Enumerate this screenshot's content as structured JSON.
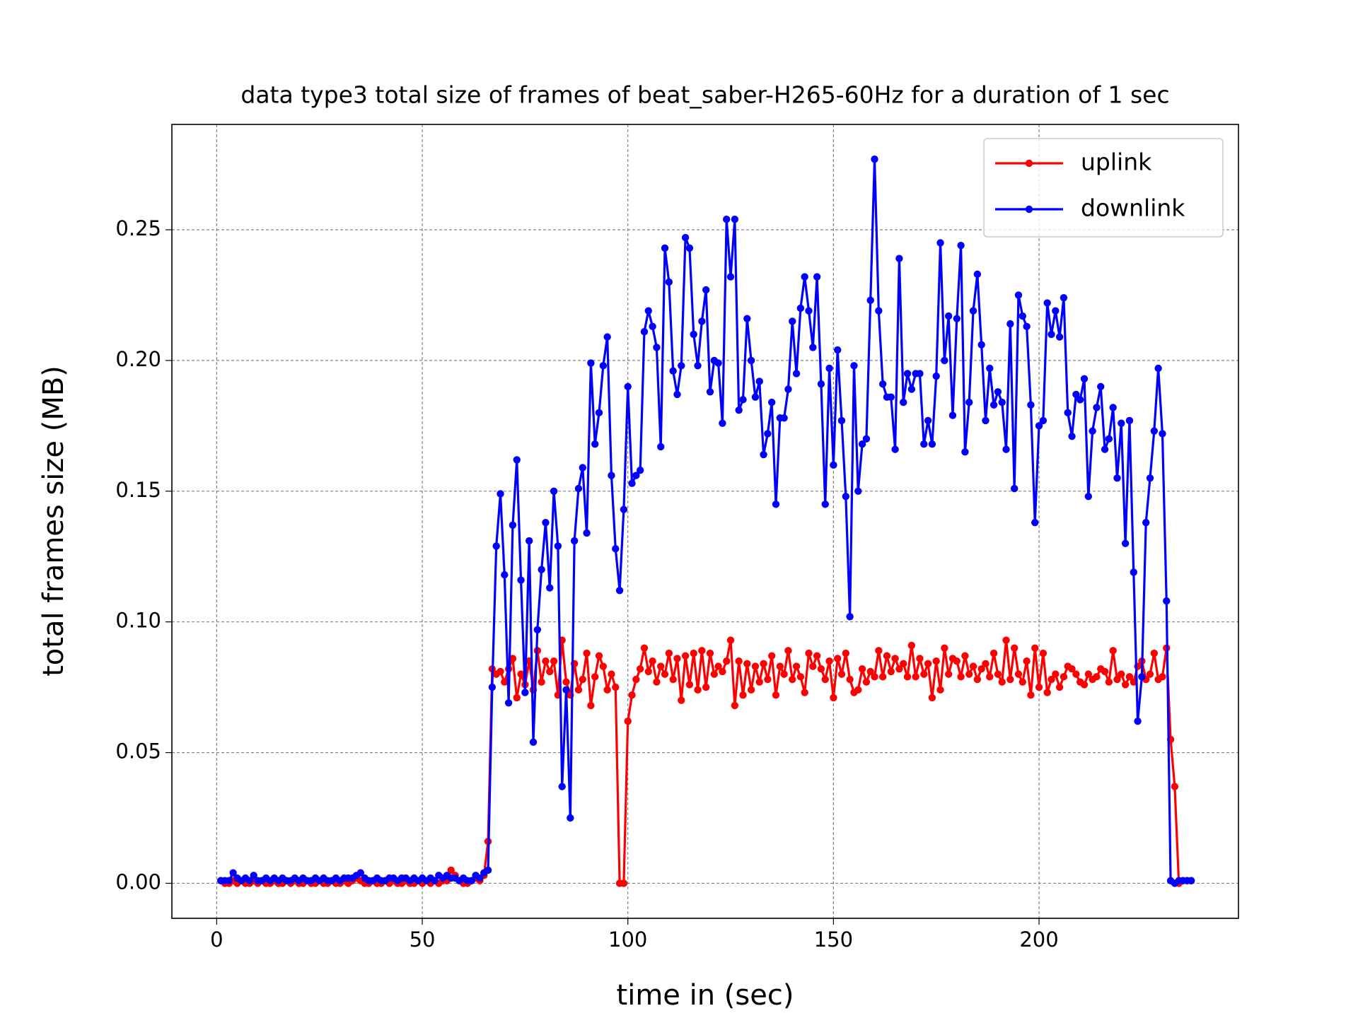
{
  "chart_data": {
    "type": "line",
    "title": "data type3 total size of frames of beat_saber-H265-60Hz for a duration of 1 sec",
    "x_label": "time in (sec)",
    "y_label": "total frames size (MB)",
    "grid": true,
    "legend": "upper right",
    "xlim": [
      -10.9,
      248.5
    ],
    "ylim": [
      -0.0134,
      0.2903
    ],
    "xticks": [
      0,
      50,
      100,
      150,
      200
    ],
    "yticks": [
      {
        "value": 0,
        "label": "0.00"
      },
      {
        "value": 0.05,
        "label": "0.05"
      },
      {
        "value": 0.1,
        "label": "0.10"
      },
      {
        "value": 0.15,
        "label": "0.15"
      },
      {
        "value": 0.2,
        "label": "0.20"
      },
      {
        "value": 0.25,
        "label": "0.25"
      }
    ],
    "x": [
      1,
      2,
      3,
      4,
      5,
      6,
      7,
      8,
      9,
      10,
      11,
      12,
      13,
      14,
      15,
      16,
      17,
      18,
      19,
      20,
      21,
      22,
      23,
      24,
      25,
      26,
      27,
      28,
      29,
      30,
      31,
      32,
      33,
      34,
      35,
      36,
      37,
      38,
      39,
      40,
      41,
      42,
      43,
      44,
      45,
      46,
      47,
      48,
      49,
      50,
      51,
      52,
      53,
      54,
      55,
      56,
      57,
      58,
      59,
      60,
      61,
      62,
      63,
      64,
      65,
      66,
      67,
      68,
      69,
      70,
      71,
      72,
      73,
      74,
      75,
      76,
      77,
      78,
      79,
      80,
      81,
      82,
      83,
      84,
      85,
      86,
      87,
      88,
      89,
      90,
      91,
      92,
      93,
      94,
      95,
      96,
      97,
      98,
      99,
      100,
      101,
      102,
      103,
      104,
      105,
      106,
      107,
      108,
      109,
      110,
      111,
      112,
      113,
      114,
      115,
      116,
      117,
      118,
      119,
      120,
      121,
      122,
      123,
      124,
      125,
      126,
      127,
      128,
      129,
      130,
      131,
      132,
      133,
      134,
      135,
      136,
      137,
      138,
      139,
      140,
      141,
      142,
      143,
      144,
      145,
      146,
      147,
      148,
      149,
      150,
      151,
      152,
      153,
      154,
      155,
      156,
      157,
      158,
      159,
      160,
      161,
      162,
      163,
      164,
      165,
      166,
      167,
      168,
      169,
      170,
      171,
      172,
      173,
      174,
      175,
      176,
      177,
      178,
      179,
      180,
      181,
      182,
      183,
      184,
      185,
      186,
      187,
      188,
      189,
      190,
      191,
      192,
      193,
      194,
      195,
      196,
      197,
      198,
      199,
      200,
      201,
      202,
      203,
      204,
      205,
      206,
      207,
      208,
      209,
      210,
      211,
      212,
      213,
      214,
      215,
      216,
      217,
      218,
      219,
      220,
      221,
      222,
      223,
      224,
      225,
      226,
      227,
      228,
      229,
      230,
      231,
      232,
      233,
      234,
      235,
      236,
      237
    ],
    "series": [
      {
        "name": "uplink",
        "color": "#ff0000",
        "values": [
          0.001,
          0.0,
          0.0,
          0.001,
          0.0,
          0.001,
          0.0,
          0.0,
          0.001,
          0.0,
          0.001,
          0.0,
          0.0,
          0.001,
          0.0,
          0.0,
          0.001,
          0.0,
          0.001,
          0.0,
          0.0,
          0.001,
          0.0,
          0.0,
          0.001,
          0.0,
          0.0,
          0.001,
          0.0,
          0.0,
          0.001,
          0.0,
          0.001,
          0.002,
          0.001,
          0.0,
          0.0,
          0.001,
          0.0,
          0.0,
          0.001,
          0.0,
          0.001,
          0.0,
          0.0,
          0.001,
          0.0,
          0.0,
          0.001,
          0.0,
          0.001,
          0.0,
          0.001,
          0.0,
          0.001,
          0.001,
          0.005,
          0.003,
          0.001,
          0.0,
          0.0,
          0.001,
          0.002,
          0.001,
          0.003,
          0.016,
          0.082,
          0.08,
          0.081,
          0.077,
          0.082,
          0.086,
          0.071,
          0.08,
          0.076,
          0.085,
          0.074,
          0.089,
          0.077,
          0.085,
          0.081,
          0.085,
          0.072,
          0.093,
          0.077,
          0.072,
          0.084,
          0.074,
          0.078,
          0.088,
          0.068,
          0.079,
          0.087,
          0.083,
          0.074,
          0.08,
          0.075,
          0.0,
          0.0,
          0.062,
          0.072,
          0.078,
          0.082,
          0.09,
          0.081,
          0.085,
          0.077,
          0.083,
          0.08,
          0.088,
          0.078,
          0.086,
          0.07,
          0.087,
          0.076,
          0.088,
          0.074,
          0.089,
          0.075,
          0.088,
          0.08,
          0.083,
          0.081,
          0.085,
          0.093,
          0.068,
          0.085,
          0.072,
          0.084,
          0.074,
          0.083,
          0.077,
          0.084,
          0.078,
          0.087,
          0.072,
          0.083,
          0.08,
          0.089,
          0.078,
          0.083,
          0.079,
          0.073,
          0.088,
          0.083,
          0.087,
          0.082,
          0.078,
          0.085,
          0.071,
          0.086,
          0.08,
          0.088,
          0.078,
          0.073,
          0.074,
          0.082,
          0.077,
          0.081,
          0.079,
          0.089,
          0.079,
          0.087,
          0.081,
          0.086,
          0.082,
          0.084,
          0.079,
          0.091,
          0.079,
          0.086,
          0.08,
          0.084,
          0.071,
          0.085,
          0.074,
          0.09,
          0.08,
          0.086,
          0.085,
          0.079,
          0.087,
          0.08,
          0.083,
          0.078,
          0.082,
          0.084,
          0.079,
          0.088,
          0.08,
          0.077,
          0.093,
          0.078,
          0.09,
          0.08,
          0.077,
          0.085,
          0.072,
          0.09,
          0.075,
          0.088,
          0.073,
          0.078,
          0.08,
          0.075,
          0.079,
          0.083,
          0.082,
          0.08,
          0.077,
          0.076,
          0.08,
          0.078,
          0.079,
          0.082,
          0.081,
          0.077,
          0.089,
          0.078,
          0.08,
          0.076,
          0.079,
          0.077,
          0.083,
          0.085,
          0.078,
          0.08,
          0.088,
          0.078,
          0.079,
          0.09,
          0.055,
          0.037,
          0.0,
          0.001,
          0.001,
          0.001
        ]
      },
      {
        "name": "downlink",
        "color": "#0000ff",
        "values": [
          0.001,
          0.001,
          0.001,
          0.004,
          0.002,
          0.001,
          0.002,
          0.001,
          0.003,
          0.001,
          0.001,
          0.002,
          0.001,
          0.002,
          0.001,
          0.002,
          0.001,
          0.001,
          0.002,
          0.001,
          0.002,
          0.001,
          0.001,
          0.002,
          0.001,
          0.002,
          0.001,
          0.001,
          0.002,
          0.001,
          0.002,
          0.002,
          0.002,
          0.003,
          0.004,
          0.002,
          0.001,
          0.001,
          0.002,
          0.001,
          0.001,
          0.002,
          0.002,
          0.001,
          0.002,
          0.002,
          0.001,
          0.002,
          0.001,
          0.002,
          0.001,
          0.002,
          0.001,
          0.003,
          0.002,
          0.003,
          0.002,
          0.002,
          0.001,
          0.002,
          0.001,
          0.001,
          0.003,
          0.002,
          0.004,
          0.005,
          0.075,
          0.129,
          0.149,
          0.118,
          0.069,
          0.137,
          0.162,
          0.116,
          0.073,
          0.131,
          0.054,
          0.097,
          0.12,
          0.138,
          0.113,
          0.15,
          0.129,
          0.037,
          0.074,
          0.025,
          0.131,
          0.151,
          0.159,
          0.134,
          0.199,
          0.168,
          0.18,
          0.198,
          0.209,
          0.156,
          0.128,
          0.112,
          0.143,
          0.19,
          0.153,
          0.156,
          0.158,
          0.211,
          0.219,
          0.213,
          0.205,
          0.167,
          0.243,
          0.23,
          0.196,
          0.187,
          0.198,
          0.247,
          0.243,
          0.21,
          0.198,
          0.215,
          0.227,
          0.188,
          0.2,
          0.199,
          0.176,
          0.254,
          0.232,
          0.254,
          0.181,
          0.185,
          0.216,
          0.2,
          0.186,
          0.192,
          0.164,
          0.172,
          0.184,
          0.145,
          0.178,
          0.178,
          0.189,
          0.215,
          0.195,
          0.22,
          0.232,
          0.219,
          0.205,
          0.232,
          0.191,
          0.145,
          0.197,
          0.16,
          0.204,
          0.177,
          0.148,
          0.102,
          0.198,
          0.15,
          0.168,
          0.17,
          0.223,
          0.277,
          0.219,
          0.191,
          0.186,
          0.186,
          0.166,
          0.239,
          0.184,
          0.195,
          0.189,
          0.195,
          0.195,
          0.168,
          0.177,
          0.168,
          0.194,
          0.245,
          0.2,
          0.217,
          0.179,
          0.216,
          0.244,
          0.165,
          0.184,
          0.219,
          0.233,
          0.206,
          0.177,
          0.197,
          0.183,
          0.188,
          0.184,
          0.166,
          0.214,
          0.151,
          0.225,
          0.217,
          0.213,
          0.183,
          0.138,
          0.175,
          0.177,
          0.222,
          0.21,
          0.219,
          0.209,
          0.224,
          0.18,
          0.171,
          0.187,
          0.185,
          0.193,
          0.148,
          0.173,
          0.182,
          0.19,
          0.166,
          0.17,
          0.182,
          0.155,
          0.176,
          0.13,
          0.177,
          0.119,
          0.062,
          0.079,
          0.138,
          0.155,
          0.173,
          0.197,
          0.172,
          0.108,
          0.001,
          0.0,
          0.001,
          0.001,
          0.001,
          0.001
        ]
      }
    ]
  }
}
